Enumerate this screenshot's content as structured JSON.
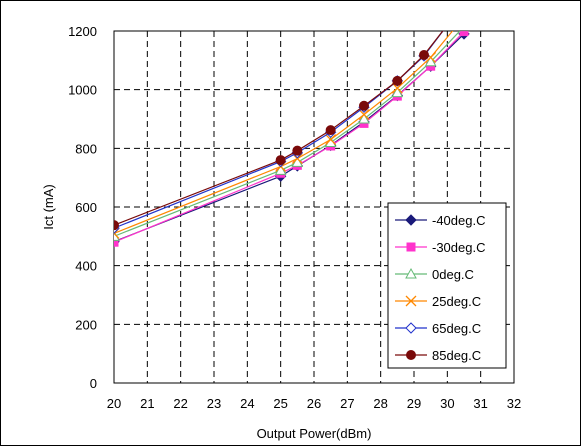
{
  "chart_data": {
    "type": "line",
    "title": "",
    "xlabel": "Output Power(dBm)",
    "ylabel": "Ict (mA)",
    "xlim": [
      20,
      32
    ],
    "ylim": [
      0,
      1200
    ],
    "x_ticks": [
      20,
      21,
      22,
      23,
      24,
      25,
      26,
      27,
      28,
      29,
      30,
      31,
      32
    ],
    "y_ticks": [
      0,
      200,
      400,
      600,
      800,
      1000,
      1200
    ],
    "grid": "dashed",
    "legend_position": "right",
    "series": [
      {
        "name": "-40deg.C",
        "color": "#1a1a7a",
        "marker": "diamond",
        "x": [
          20,
          25,
          25.5,
          26.5,
          27.5,
          28.5,
          29.5,
          30.5
        ],
        "y": [
          482,
          705,
          740,
          810,
          890,
          980,
          1080,
          1190
        ]
      },
      {
        "name": "-30deg.C",
        "color": "#ff33cc",
        "marker": "square",
        "x": [
          20,
          25,
          25.5,
          26.5,
          27.5,
          28.5,
          29.5,
          30.5
        ],
        "y": [
          480,
          715,
          742,
          808,
          885,
          978,
          1080,
          1198
        ]
      },
      {
        "name": "0deg.C",
        "color": "#66bb77",
        "marker": "triangle",
        "x": [
          20,
          25,
          25.5,
          26.5,
          27.5,
          28.5,
          29.5,
          30.5
        ],
        "y": [
          500,
          725,
          752,
          820,
          900,
          990,
          1095,
          1215
        ]
      },
      {
        "name": "25deg.C",
        "color": "#ff8800",
        "marker": "x",
        "x": [
          20,
          25,
          25.5,
          26.5,
          27.5,
          28.5,
          29.5,
          30.3
        ],
        "y": [
          510,
          738,
          765,
          830,
          915,
          1005,
          1110,
          1220
        ]
      },
      {
        "name": "65deg.C",
        "color": "#2233cc",
        "marker": "diamond-open",
        "x": [
          20,
          25,
          25.5,
          26.5,
          27.5,
          28.5,
          29.3,
          30.0
        ],
        "y": [
          528,
          755,
          785,
          855,
          940,
          1030,
          1115,
          1220
        ]
      },
      {
        "name": "85deg.C",
        "color": "#7a0a0a",
        "marker": "circle",
        "x": [
          20,
          25,
          25.5,
          26.5,
          27.5,
          28.5,
          29.3,
          30.0
        ],
        "y": [
          538,
          760,
          792,
          862,
          945,
          1030,
          1118,
          1220
        ]
      }
    ]
  }
}
